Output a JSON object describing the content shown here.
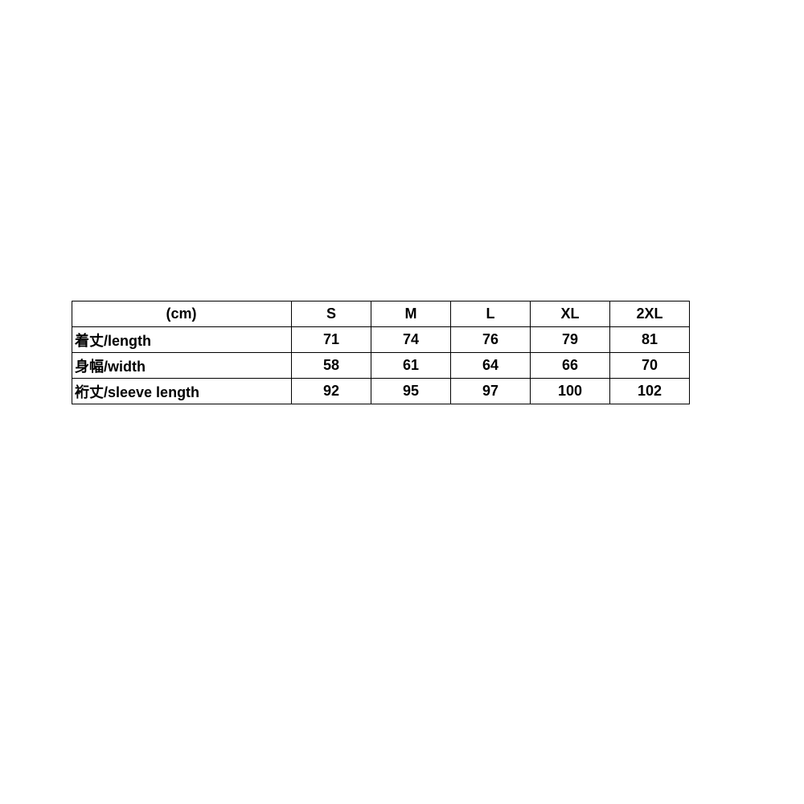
{
  "table": {
    "unit_header": "(cm)",
    "sizes": [
      "S",
      "M",
      "L",
      "XL",
      "2XL"
    ],
    "rows": [
      {
        "label": "着丈/length",
        "values": [
          "71",
          "74",
          "76",
          "79",
          "81"
        ]
      },
      {
        "label": "身幅/width",
        "values": [
          "58",
          "61",
          "64",
          "66",
          "70"
        ]
      },
      {
        "label": "裄丈/sleeve length",
        "values": [
          "92",
          "95",
          "97",
          "100",
          "102"
        ]
      }
    ]
  }
}
